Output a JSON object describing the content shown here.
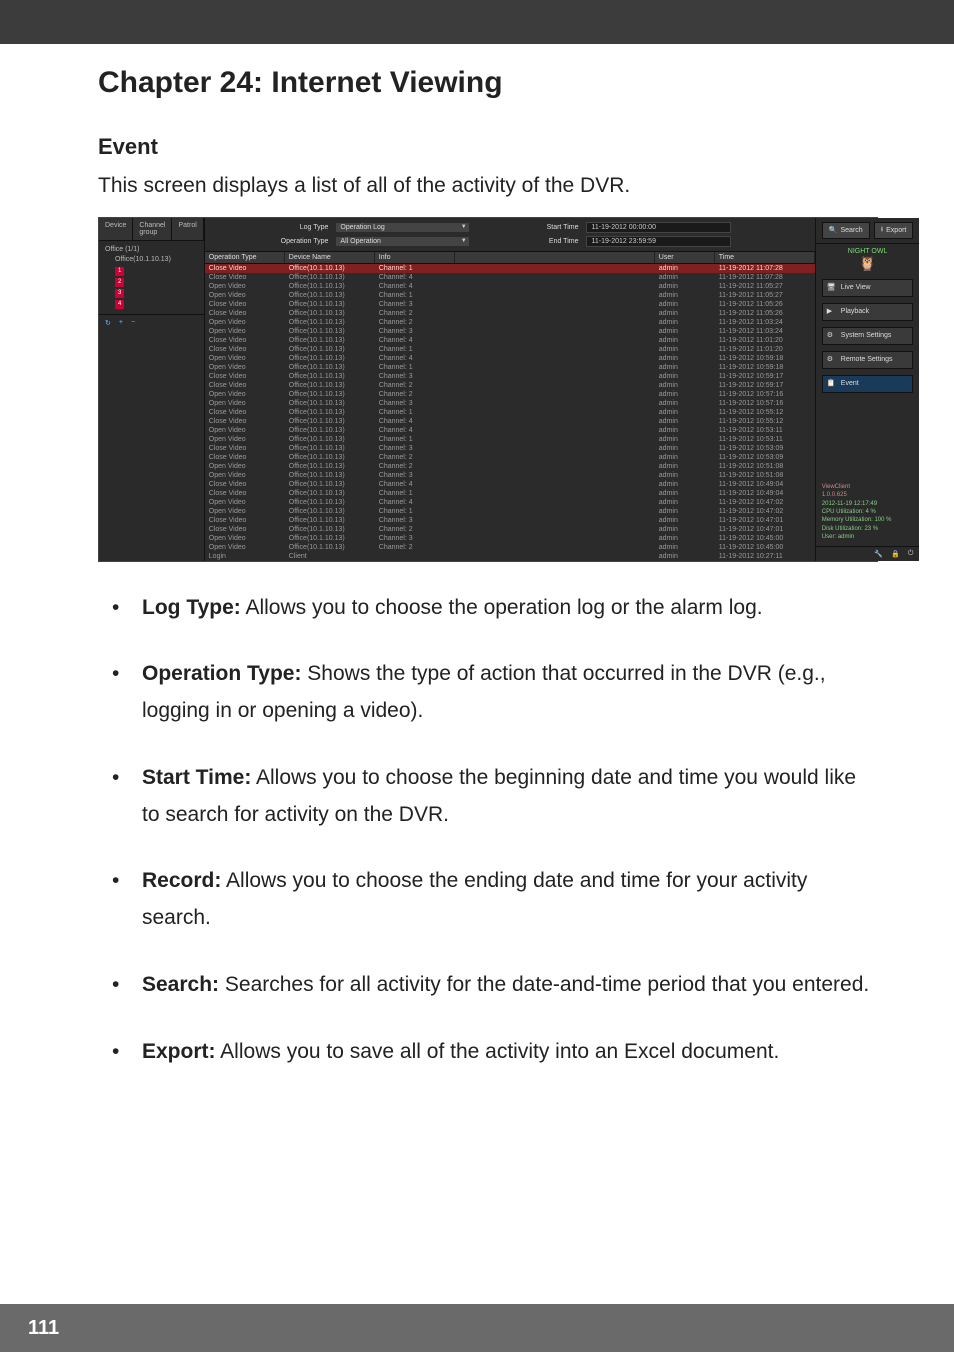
{
  "chapter_title": "Chapter 24: Internet Viewing",
  "section_heading": "Event",
  "intro": "This screen displays a list of all of the activity of the DVR.",
  "bullets": [
    {
      "term": "Log Type:",
      "desc": " Allows you to choose the operation log or the alarm log."
    },
    {
      "term": "Operation Type:",
      "desc": " Shows the type of action that occurred in the DVR (e.g., logging in or opening a video)."
    },
    {
      "term": "Start Time:",
      "desc": " Allows you to choose the beginning date and time you would like to search for activity on the DVR."
    },
    {
      "term": "Record:",
      "desc": " Allows you to choose the ending date and time for your activity search."
    },
    {
      "term": "Search:",
      "desc": " Searches for all activity for the date-and-time period that you entered."
    },
    {
      "term": "Export:",
      "desc": " Allows you to save all of the activity into an Excel document."
    }
  ],
  "page_number": "111",
  "screenshot": {
    "left_tabs": [
      "Device",
      "Channel group",
      "Patrol"
    ],
    "tree": {
      "root": "Office (1/1)",
      "child": "Office(10.1.10.13)",
      "channels": [
        "1",
        "2",
        "3",
        "4"
      ]
    },
    "filters": {
      "log_type_label": "Log Type",
      "log_type_value": "Operation Log",
      "operation_type_label": "Operation Type",
      "operation_type_value": "All Operation",
      "start_time_label": "Start Time",
      "start_time_value": "11-19-2012  00:00:00",
      "end_time_label": "End Time",
      "end_time_value": "11-19-2012  23:59:59"
    },
    "top_buttons": {
      "search": "Search",
      "export": "Export"
    },
    "table": {
      "columns": [
        "Operation Type",
        "Device Name",
        "Info",
        "",
        "User",
        "Time"
      ],
      "rows": [
        [
          "Close Video",
          "Office(10.1.10.13)",
          "Channel: 1",
          "",
          "admin",
          "11-19-2012 11:07:28"
        ],
        [
          "Close Video",
          "Office(10.1.10.13)",
          "Channel: 4",
          "",
          "admin",
          "11-19-2012 11:07:28"
        ],
        [
          "Open Video",
          "Office(10.1.10.13)",
          "Channel: 4",
          "",
          "admin",
          "11-19-2012 11:05:27"
        ],
        [
          "Open Video",
          "Office(10.1.10.13)",
          "Channel: 1",
          "",
          "admin",
          "11-19-2012 11:05:27"
        ],
        [
          "Close Video",
          "Office(10.1.10.13)",
          "Channel: 3",
          "",
          "admin",
          "11-19-2012 11:05:26"
        ],
        [
          "Close Video",
          "Office(10.1.10.13)",
          "Channel: 2",
          "",
          "admin",
          "11-19-2012 11:05:26"
        ],
        [
          "Open Video",
          "Office(10.1.10.13)",
          "Channel: 2",
          "",
          "admin",
          "11-19-2012 11:03:24"
        ],
        [
          "Open Video",
          "Office(10.1.10.13)",
          "Channel: 3",
          "",
          "admin",
          "11-19-2012 11:03:24"
        ],
        [
          "Close Video",
          "Office(10.1.10.13)",
          "Channel: 4",
          "",
          "admin",
          "11-19-2012 11:01:20"
        ],
        [
          "Close Video",
          "Office(10.1.10.13)",
          "Channel: 1",
          "",
          "admin",
          "11-19-2012 11:01:20"
        ],
        [
          "Open Video",
          "Office(10.1.10.13)",
          "Channel: 4",
          "",
          "admin",
          "11-19-2012 10:59:18"
        ],
        [
          "Open Video",
          "Office(10.1.10.13)",
          "Channel: 1",
          "",
          "admin",
          "11-19-2012 10:59:18"
        ],
        [
          "Close Video",
          "Office(10.1.10.13)",
          "Channel: 3",
          "",
          "admin",
          "11-19-2012 10:59:17"
        ],
        [
          "Close Video",
          "Office(10.1.10.13)",
          "Channel: 2",
          "",
          "admin",
          "11-19-2012 10:59:17"
        ],
        [
          "Open Video",
          "Office(10.1.10.13)",
          "Channel: 2",
          "",
          "admin",
          "11-19-2012 10:57:16"
        ],
        [
          "Open Video",
          "Office(10.1.10.13)",
          "Channel: 3",
          "",
          "admin",
          "11-19-2012 10:57:16"
        ],
        [
          "Close Video",
          "Office(10.1.10.13)",
          "Channel: 1",
          "",
          "admin",
          "11-19-2012 10:55:12"
        ],
        [
          "Close Video",
          "Office(10.1.10.13)",
          "Channel: 4",
          "",
          "admin",
          "11-19-2012 10:55:12"
        ],
        [
          "Open Video",
          "Office(10.1.10.13)",
          "Channel: 4",
          "",
          "admin",
          "11-19-2012 10:53:11"
        ],
        [
          "Open Video",
          "Office(10.1.10.13)",
          "Channel: 1",
          "",
          "admin",
          "11-19-2012 10:53:11"
        ],
        [
          "Close Video",
          "Office(10.1.10.13)",
          "Channel: 3",
          "",
          "admin",
          "11-19-2012 10:53:09"
        ],
        [
          "Close Video",
          "Office(10.1.10.13)",
          "Channel: 2",
          "",
          "admin",
          "11-19-2012 10:53:09"
        ],
        [
          "Open Video",
          "Office(10.1.10.13)",
          "Channel: 2",
          "",
          "admin",
          "11-19-2012 10:51:08"
        ],
        [
          "Open Video",
          "Office(10.1.10.13)",
          "Channel: 3",
          "",
          "admin",
          "11-19-2012 10:51:08"
        ],
        [
          "Close Video",
          "Office(10.1.10.13)",
          "Channel: 4",
          "",
          "admin",
          "11-19-2012 10:49:04"
        ],
        [
          "Close Video",
          "Office(10.1.10.13)",
          "Channel: 1",
          "",
          "admin",
          "11-19-2012 10:49:04"
        ],
        [
          "Open Video",
          "Office(10.1.10.13)",
          "Channel: 4",
          "",
          "admin",
          "11-19-2012 10:47:02"
        ],
        [
          "Open Video",
          "Office(10.1.10.13)",
          "Channel: 1",
          "",
          "admin",
          "11-19-2012 10:47:02"
        ],
        [
          "Close Video",
          "Office(10.1.10.13)",
          "Channel: 3",
          "",
          "admin",
          "11-19-2012 10:47:01"
        ],
        [
          "Close Video",
          "Office(10.1.10.13)",
          "Channel: 2",
          "",
          "admin",
          "11-19-2012 10:47:01"
        ],
        [
          "Open Video",
          "Office(10.1.10.13)",
          "Channel: 3",
          "",
          "admin",
          "11-19-2012 10:45:00"
        ],
        [
          "Open Video",
          "Office(10.1.10.13)",
          "Channel: 2",
          "",
          "admin",
          "11-19-2012 10:45:00"
        ],
        [
          "Login",
          "Client",
          "",
          "",
          "admin",
          "11-19-2012 10:27:11"
        ]
      ],
      "selected_row": 0
    },
    "right_panel": {
      "brand": "NIGHT OWL",
      "buttons": [
        {
          "label": "Live View"
        },
        {
          "label": "Playback"
        },
        {
          "label": "System Settings"
        },
        {
          "label": "Remote Settings"
        },
        {
          "label": "Event"
        }
      ],
      "info": {
        "client": "ViewClient",
        "version": "1.0.0.625",
        "datetime": "2012-11-19 12:17:49",
        "cpu_label": "CPU Utilization:",
        "cpu_val": "4 %",
        "mem_label": "Memory Utilization:",
        "mem_val": "100 %",
        "disk_label": "Disk Utilization:",
        "disk_val": "23 %",
        "user_label": "User: admin"
      }
    },
    "bottom_left": [
      "↻",
      "+",
      "−"
    ],
    "bottom_right": [
      "🔧",
      "🔒",
      "⏻"
    ]
  }
}
